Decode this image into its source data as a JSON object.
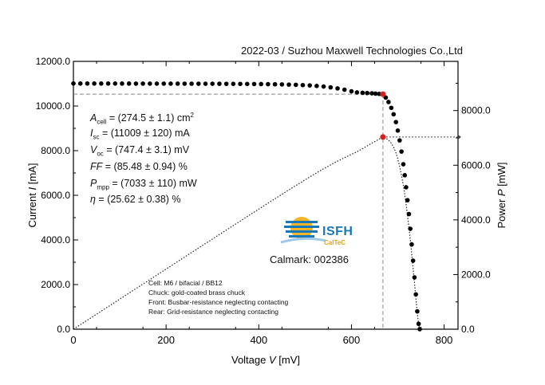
{
  "header": {
    "title": "2022-03 / Suzhou Maxwell Technologies Co.,Ltd"
  },
  "parameters": [
    {
      "symbol": "A",
      "sub": "cell",
      "value": " = (274.5 ± 1.1) cm",
      "sup": "2"
    },
    {
      "symbol": "I",
      "sub": "sc",
      "value": " = (11009 ± 120) mA",
      "sup": ""
    },
    {
      "symbol": "V",
      "sub": "oc",
      "value": " = (747.4 ± 3.1) mV",
      "sup": ""
    },
    {
      "symbol": "FF",
      "sub": "",
      "value": " = (85.48 ± 0.94) %",
      "sup": ""
    },
    {
      "symbol": "P",
      "sub": "mpp",
      "value": " = (7033 ± 110) mW",
      "sup": ""
    },
    {
      "symbol": "η",
      "sub": "",
      "value": " = (25.62 ± 0.38) %",
      "sup": ""
    }
  ],
  "notes": [
    "Cell: M6 / bifacial / BB12",
    "Chuck: gold-coated brass chuck",
    "Front: Busbar-resistance neglecting contacting",
    "Rear: Grid-resistance neglecting contacting"
  ],
  "logo": {
    "word": "ISFH",
    "sub": "CalTeC"
  },
  "calmark": "Calmark: 002386",
  "chart_data": {
    "type": "line",
    "xlabel": "Voltage V [mV]",
    "ylabel": "Current I [mA]",
    "y2label": "Power P [mW]",
    "xlim": [
      0,
      830
    ],
    "ylim": [
      0,
      12000
    ],
    "y2lim": [
      0,
      9800
    ],
    "xticks": [
      0,
      200,
      400,
      600,
      800
    ],
    "yticks": [
      "0.0",
      "2000.0",
      "4000.0",
      "6000.0",
      "8000.0",
      "10000.0",
      "12000.0"
    ],
    "y2ticks": [
      "0.0",
      "2000.0",
      "4000.0",
      "6000.0",
      "8000.0"
    ],
    "isc": 11009,
    "voc": 747.4,
    "mpp": {
      "v": 668,
      "i": 10530,
      "p": 7033
    },
    "colors": {
      "iv": "#000000",
      "mpp": "#d42020",
      "power": "#222222",
      "guide": "#888888"
    },
    "series": [
      {
        "name": "",
        "values_v": [
          0,
          15,
          30,
          45,
          60,
          75,
          90,
          105,
          120,
          135,
          150,
          165,
          180,
          195,
          210,
          225,
          240,
          255,
          270,
          285,
          300,
          315,
          330,
          345,
          360,
          375,
          390,
          405,
          420,
          435,
          450,
          465,
          480,
          495,
          510,
          525,
          540,
          555,
          570,
          585,
          600,
          612,
          624,
          634,
          644,
          652,
          660,
          668,
          674,
          680,
          686,
          691,
          696,
          700,
          704,
          708,
          712,
          715,
          718,
          721,
          724,
          727,
          730,
          733,
          736,
          739,
          742,
          745,
          747.4
        ],
        "values_i": [
          11009,
          11008,
          11008,
          11007,
          11007,
          11006,
          11006,
          11005,
          11005,
          11004,
          11004,
          11003,
          11003,
          11002,
          11002,
          11001,
          11000,
          11000,
          10999,
          10998,
          10997,
          10996,
          10995,
          10993,
          10991,
          10989,
          10986,
          10983,
          10979,
          10974,
          10968,
          10960,
          10950,
          10938,
          10922,
          10900,
          10872,
          10836,
          10790,
          10730,
          10660,
          10610,
          10590,
          10580,
          10570,
          10555,
          10545,
          10530,
          10380,
          10180,
          9920,
          9630,
          9280,
          8900,
          8460,
          7960,
          7390,
          6900,
          6360,
          5780,
          5160,
          4500,
          3800,
          3070,
          2320,
          1560,
          800,
          240,
          0
        ]
      }
    ]
  }
}
